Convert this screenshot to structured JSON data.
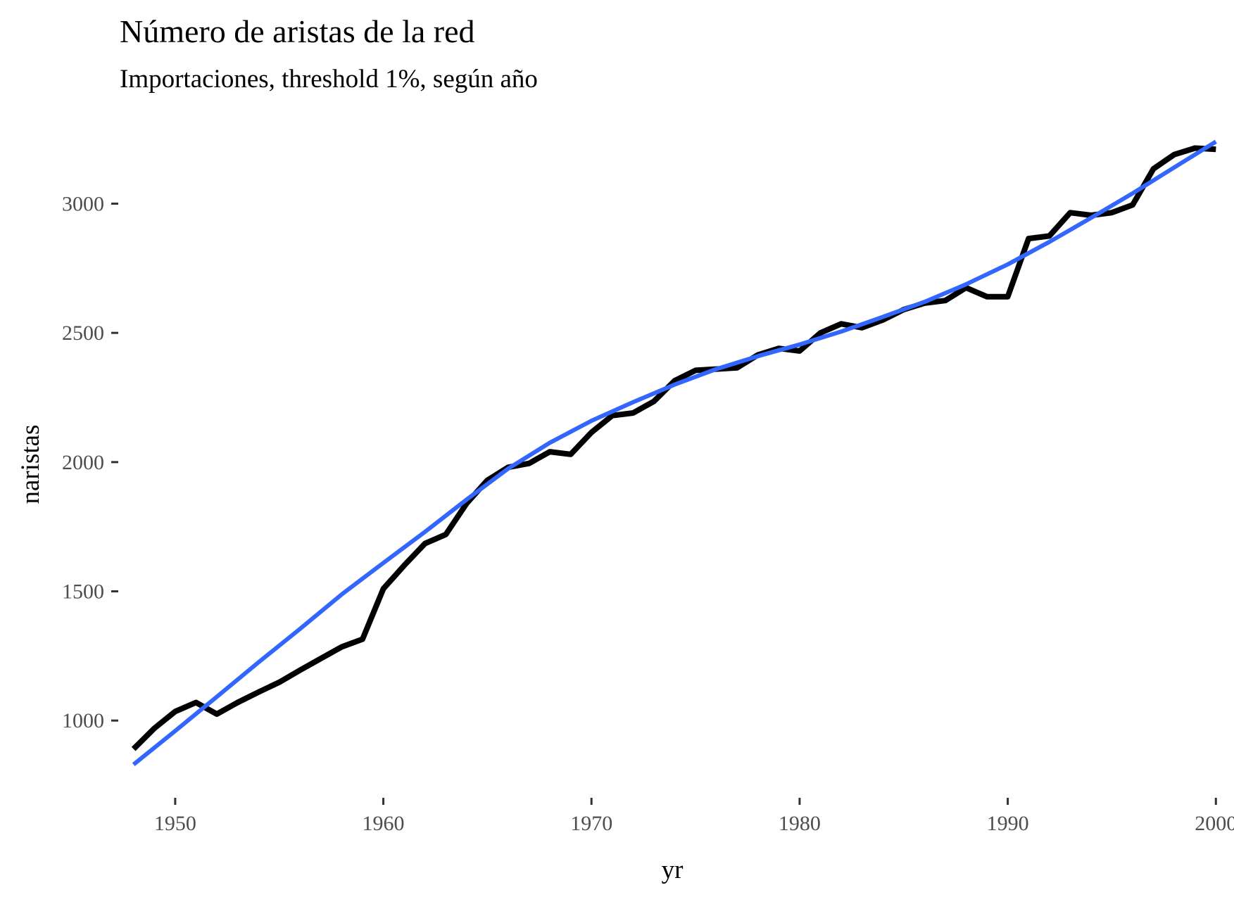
{
  "chart_data": {
    "type": "line",
    "title": "Número de aristas de la red",
    "subtitle": "Importaciones, threshold 1%, según año",
    "xlabel": "yr",
    "ylabel": "naristas",
    "xlim": [
      1947.4,
      2000.6
    ],
    "ylim": [
      712,
      3298
    ],
    "x_ticks": [
      1950,
      1960,
      1970,
      1980,
      1990,
      2000
    ],
    "y_ticks": [
      1000,
      1500,
      2000,
      2500,
      3000
    ],
    "grid": false,
    "legend": "none",
    "series": [
      {
        "color": "#000000",
        "x": [
          1948,
          1949,
          1950,
          1951,
          1952,
          1953,
          1954,
          1955,
          1956,
          1957,
          1958,
          1959,
          1960,
          1961,
          1962,
          1963,
          1964,
          1965,
          1966,
          1967,
          1968,
          1969,
          1970,
          1971,
          1972,
          1973,
          1974,
          1975,
          1976,
          1977,
          1978,
          1979,
          1980,
          1981,
          1982,
          1983,
          1984,
          1985,
          1986,
          1987,
          1988,
          1989,
          1990,
          1991,
          1992,
          1993,
          1994,
          1995,
          1996,
          1997,
          1998,
          1999,
          2000
        ],
        "y": [
          890,
          970,
          1035,
          1070,
          1025,
          1070,
          1110,
          1148,
          1195,
          1240,
          1285,
          1315,
          1510,
          1600,
          1685,
          1720,
          1840,
          1930,
          1980,
          1995,
          2040,
          2030,
          2115,
          2180,
          2190,
          2235,
          2315,
          2355,
          2360,
          2365,
          2415,
          2440,
          2430,
          2500,
          2535,
          2520,
          2550,
          2590,
          2615,
          2625,
          2675,
          2640,
          2640,
          2865,
          2875,
          2965,
          2955,
          2965,
          2995,
          3135,
          3190,
          3215,
          3210
        ]
      },
      {
        "color": "#3366ff",
        "x": [
          1948,
          1950,
          1952,
          1954,
          1956,
          1958,
          1960,
          1962,
          1964,
          1966,
          1968,
          1970,
          1972,
          1974,
          1976,
          1978,
          1980,
          1982,
          1984,
          1986,
          1988,
          1990,
          1992,
          1994,
          1996,
          1998,
          2000
        ],
        "y": [
          830,
          960,
          1092,
          1225,
          1355,
          1488,
          1610,
          1730,
          1855,
          1975,
          2075,
          2160,
          2232,
          2300,
          2360,
          2410,
          2455,
          2505,
          2562,
          2620,
          2688,
          2765,
          2852,
          2945,
          3040,
          3140,
          3240
        ]
      }
    ]
  }
}
